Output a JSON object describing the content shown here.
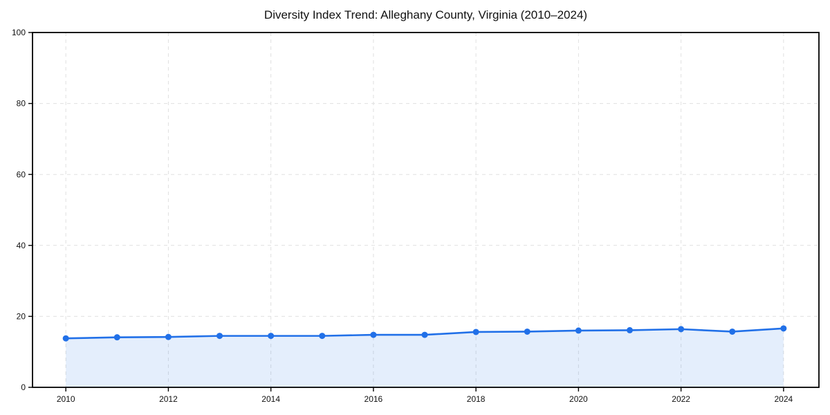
{
  "page": {
    "background": "#ffffff"
  },
  "chart_data": {
    "type": "line",
    "title": "Diversity Index Trend: Alleghany County, Virginia (2010–2024)",
    "xlabel": "",
    "ylabel": "",
    "x": [
      2010,
      2011,
      2012,
      2013,
      2014,
      2015,
      2016,
      2017,
      2018,
      2019,
      2020,
      2021,
      2022,
      2023,
      2024
    ],
    "series": [
      {
        "name": "Diversity Index",
        "values": [
          13.8,
          14.1,
          14.2,
          14.5,
          14.5,
          14.5,
          14.8,
          14.8,
          15.6,
          15.7,
          16.0,
          16.1,
          16.4,
          15.7,
          16.6
        ],
        "color": "#2170e8",
        "marker": "circle",
        "marker_radius": 4.5,
        "line_width": 2.6,
        "area_fill": true,
        "area_opacity": 0.12
      }
    ],
    "x_tick_years": [
      2010,
      2012,
      2014,
      2016,
      2018,
      2020,
      2022,
      2024
    ],
    "x_tick_labels": [
      "2010",
      "2012",
      "2014",
      "2016",
      "2018",
      "2020",
      "2022",
      "2024"
    ],
    "y_ticks": [
      0,
      20,
      40,
      60,
      80,
      100
    ],
    "y_tick_labels": [
      "0",
      "20",
      "40",
      "60",
      "80",
      "100"
    ],
    "xlim": [
      2009.35,
      2024.69
    ],
    "ylim": [
      0,
      100
    ],
    "grid": "dashed",
    "grid_color": "#e0e0e0",
    "spine_color": "#000000",
    "background_color": "#ffffff",
    "legend": "none"
  }
}
